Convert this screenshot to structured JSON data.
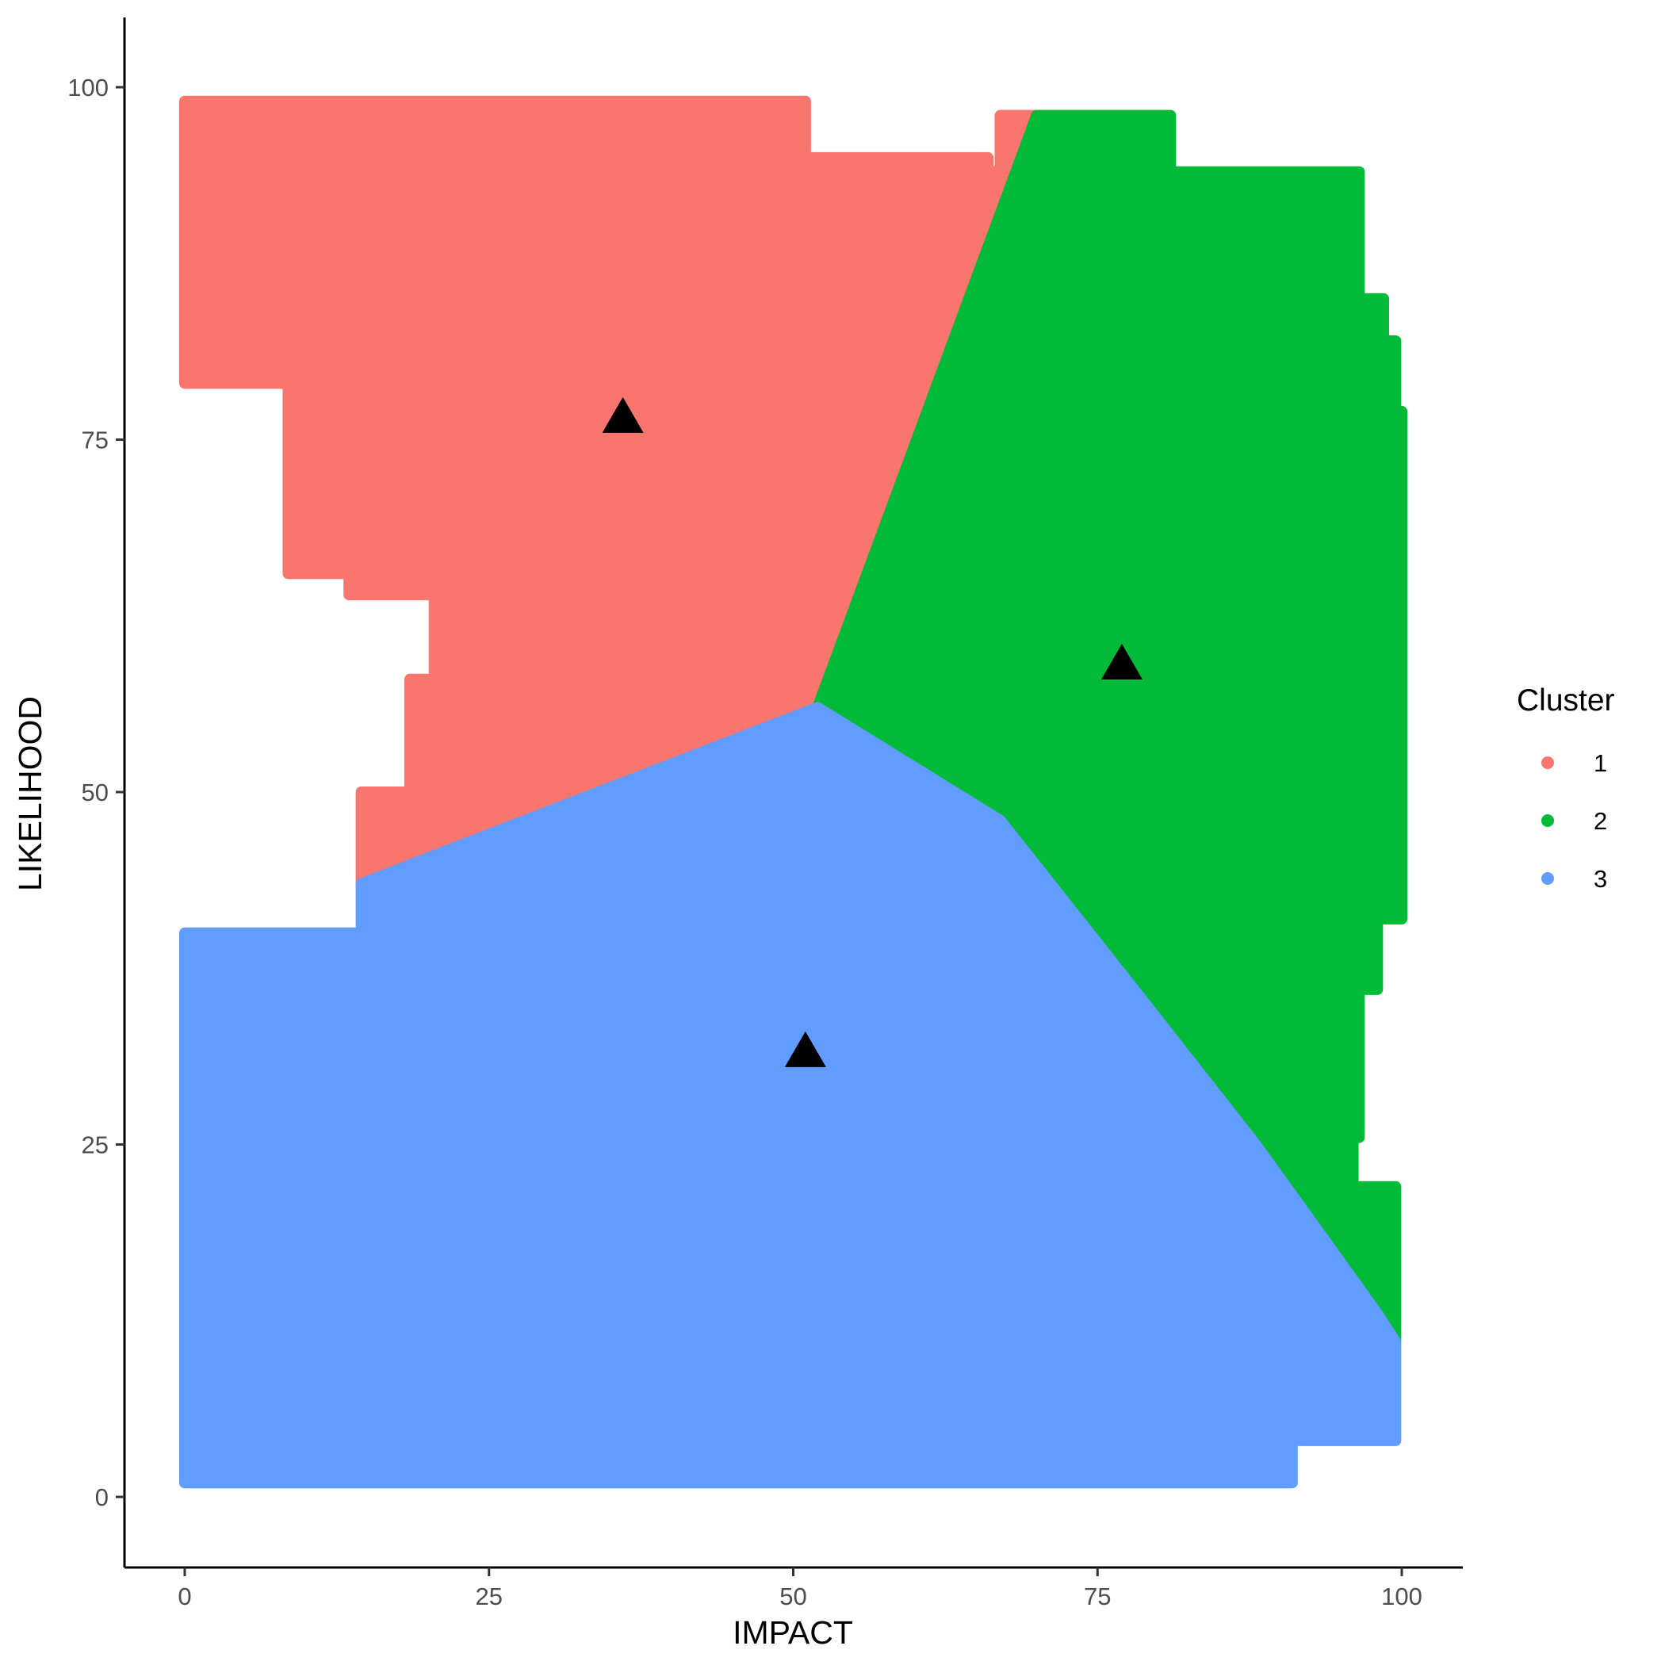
{
  "chart_data": {
    "type": "scatter",
    "xlabel": "IMPACT",
    "ylabel": "LIKELIHOOD",
    "xlim": [
      -5,
      105
    ],
    "ylim": [
      -4.5,
      105
    ],
    "xticks": [
      0,
      25,
      50,
      75,
      100
    ],
    "yticks": [
      0,
      25,
      50,
      75,
      100
    ],
    "grid": false,
    "legend": {
      "title": "Cluster",
      "position": "right"
    },
    "series": [
      {
        "name": "1",
        "color": "#F8766D",
        "region_polygon": [
          [
            0,
            99
          ],
          [
            51,
            99
          ],
          [
            51,
            95
          ],
          [
            66,
            95
          ],
          [
            66,
            94
          ],
          [
            67,
            94
          ],
          [
            67,
            98
          ],
          [
            70,
            98
          ],
          [
            52,
            56
          ],
          [
            14.5,
            43.5
          ],
          [
            14.5,
            50
          ],
          [
            18.5,
            50
          ],
          [
            18.5,
            58
          ],
          [
            20.5,
            58
          ],
          [
            20.5,
            64
          ],
          [
            13.5,
            64
          ],
          [
            13.5,
            65.5
          ],
          [
            8.5,
            65.5
          ],
          [
            8.5,
            79
          ],
          [
            0,
            79
          ]
        ]
      },
      {
        "name": "2",
        "color": "#00BA38",
        "region_polygon": [
          [
            70,
            98
          ],
          [
            81,
            98
          ],
          [
            81,
            94
          ],
          [
            96.5,
            94
          ],
          [
            96.5,
            85
          ],
          [
            98.5,
            85
          ],
          [
            98.5,
            82
          ],
          [
            99.5,
            82
          ],
          [
            99.5,
            77
          ],
          [
            100,
            77
          ],
          [
            100,
            41
          ],
          [
            98,
            41
          ],
          [
            98,
            36
          ],
          [
            96.5,
            36
          ],
          [
            96.5,
            25.5
          ],
          [
            96,
            25.5
          ],
          [
            96,
            22
          ],
          [
            99.5,
            22
          ],
          [
            99.5,
            11
          ],
          [
            98,
            13
          ],
          [
            88,
            25
          ],
          [
            78,
            36
          ],
          [
            67,
            48
          ],
          [
            52,
            56
          ]
        ]
      },
      {
        "name": "3",
        "color": "#619CFF",
        "region_polygon": [
          [
            0,
            1
          ],
          [
            91,
            1
          ],
          [
            91,
            4
          ],
          [
            99.5,
            4
          ],
          [
            99.5,
            11
          ],
          [
            98,
            13
          ],
          [
            88,
            25
          ],
          [
            78,
            36
          ],
          [
            67,
            48
          ],
          [
            52,
            56
          ],
          [
            14.5,
            43.5
          ],
          [
            14.5,
            40
          ],
          [
            0,
            40
          ]
        ]
      }
    ],
    "centroids": [
      {
        "cluster": "1",
        "x": 36,
        "y": 76.5
      },
      {
        "cluster": "2",
        "x": 77,
        "y": 59
      },
      {
        "cluster": "3",
        "x": 51,
        "y": 31.5
      }
    ]
  }
}
